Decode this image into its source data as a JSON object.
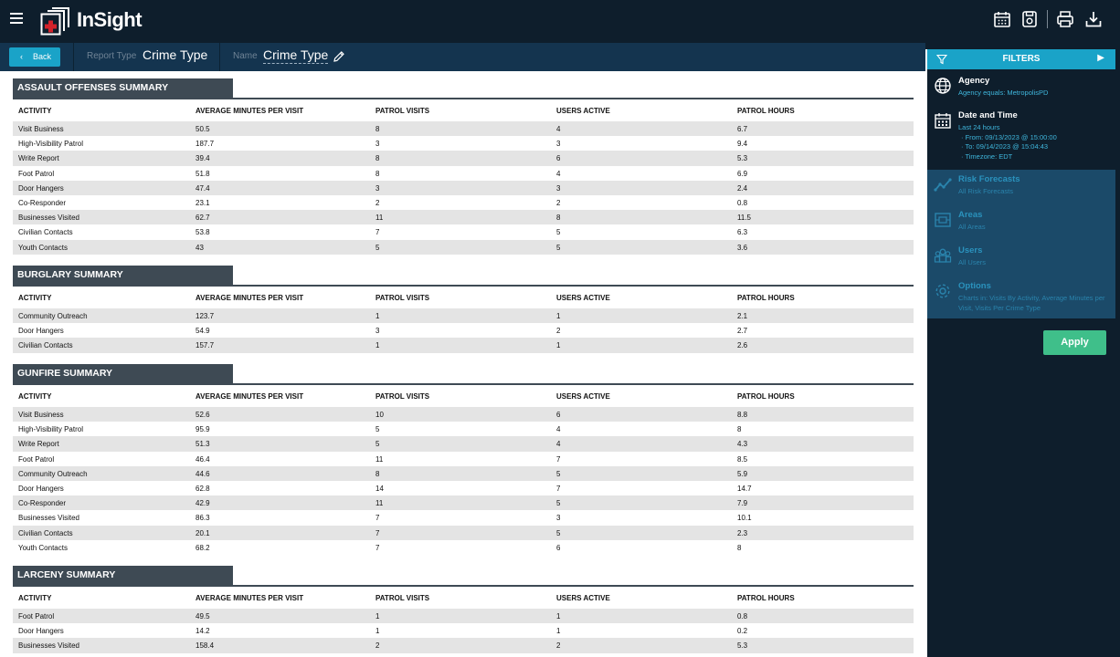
{
  "app": {
    "title": "InSight"
  },
  "subbar": {
    "back_label": "Back",
    "report_type_label": "Report Type",
    "report_type_value": "Crime Type",
    "name_label": "Name",
    "name_value": "Crime Type"
  },
  "columns": [
    "ACTIVITY",
    "AVERAGE MINUTES PER VISIT",
    "PATROL VISITS",
    "USERS ACTIVE",
    "PATROL HOURS"
  ],
  "sections": [
    {
      "title": "ASSAULT OFFENSES SUMMARY",
      "rows": [
        [
          "Visit Business",
          "50.5",
          "8",
          "4",
          "6.7"
        ],
        [
          "High-Visibility Patrol",
          "187.7",
          "3",
          "3",
          "9.4"
        ],
        [
          "Write Report",
          "39.4",
          "8",
          "6",
          "5.3"
        ],
        [
          "Foot Patrol",
          "51.8",
          "8",
          "4",
          "6.9"
        ],
        [
          "Door Hangers",
          "47.4",
          "3",
          "3",
          "2.4"
        ],
        [
          "Co-Responder",
          "23.1",
          "2",
          "2",
          "0.8"
        ],
        [
          "Businesses Visited",
          "62.7",
          "11",
          "8",
          "11.5"
        ],
        [
          "Civilian Contacts",
          "53.8",
          "7",
          "5",
          "6.3"
        ],
        [
          "Youth Contacts",
          "43",
          "5",
          "5",
          "3.6"
        ]
      ]
    },
    {
      "title": "BURGLARY SUMMARY",
      "rows": [
        [
          "Community Outreach",
          "123.7",
          "1",
          "1",
          "2.1"
        ],
        [
          "Door Hangers",
          "54.9",
          "3",
          "2",
          "2.7"
        ],
        [
          "Civilian Contacts",
          "157.7",
          "1",
          "1",
          "2.6"
        ]
      ]
    },
    {
      "title": "GUNFIRE SUMMARY",
      "rows": [
        [
          "Visit Business",
          "52.6",
          "10",
          "6",
          "8.8"
        ],
        [
          "High-Visibility Patrol",
          "95.9",
          "5",
          "4",
          "8"
        ],
        [
          "Write Report",
          "51.3",
          "5",
          "4",
          "4.3"
        ],
        [
          "Foot Patrol",
          "46.4",
          "11",
          "7",
          "8.5"
        ],
        [
          "Community Outreach",
          "44.6",
          "8",
          "5",
          "5.9"
        ],
        [
          "Door Hangers",
          "62.8",
          "14",
          "7",
          "14.7"
        ],
        [
          "Co-Responder",
          "42.9",
          "11",
          "5",
          "7.9"
        ],
        [
          "Businesses Visited",
          "86.3",
          "7",
          "3",
          "10.1"
        ],
        [
          "Civilian Contacts",
          "20.1",
          "7",
          "5",
          "2.3"
        ],
        [
          "Youth Contacts",
          "68.2",
          "7",
          "6",
          "8"
        ]
      ]
    },
    {
      "title": "LARCENY SUMMARY",
      "rows": [
        [
          "Foot Patrol",
          "49.5",
          "1",
          "1",
          "0.8"
        ],
        [
          "Door Hangers",
          "14.2",
          "1",
          "1",
          "0.2"
        ],
        [
          "Businesses Visited",
          "158.4",
          "2",
          "2",
          "5.3"
        ]
      ]
    }
  ],
  "filters": {
    "header": "FILTERS",
    "items": [
      {
        "title": "Agency",
        "lines": [
          "Agency equals: MetropolisPD"
        ],
        "icon": "globe-icon",
        "active": true
      },
      {
        "title": "Date and Time",
        "lines": [
          "Last 24 hours",
          "· From: 09/13/2023 @ 15:00:00",
          "· To: 09/14/2023 @ 15:04:43",
          "· Timezone: EDT"
        ],
        "icon": "calendar-icon",
        "active": true
      },
      {
        "title": "Risk Forecasts",
        "lines": [
          "All Risk Forecasts"
        ],
        "icon": "trend-icon",
        "active": false
      },
      {
        "title": "Areas",
        "lines": [
          "All Areas"
        ],
        "icon": "map-icon",
        "active": false
      },
      {
        "title": "Users",
        "lines": [
          "All Users"
        ],
        "icon": "users-icon",
        "active": false
      },
      {
        "title": "Options",
        "lines": [
          "Charts in: Visits By Activity, Average Minutes per Visit, Visits Per Crime Type"
        ],
        "icon": "gear-icon",
        "active": false
      }
    ],
    "apply_label": "Apply"
  },
  "colors": {
    "topbar": "#0e1e2c",
    "subbar": "#14344f",
    "accent": "#1aa3c8",
    "section_header": "#3e4a54",
    "apply": "#3fbf8a"
  }
}
